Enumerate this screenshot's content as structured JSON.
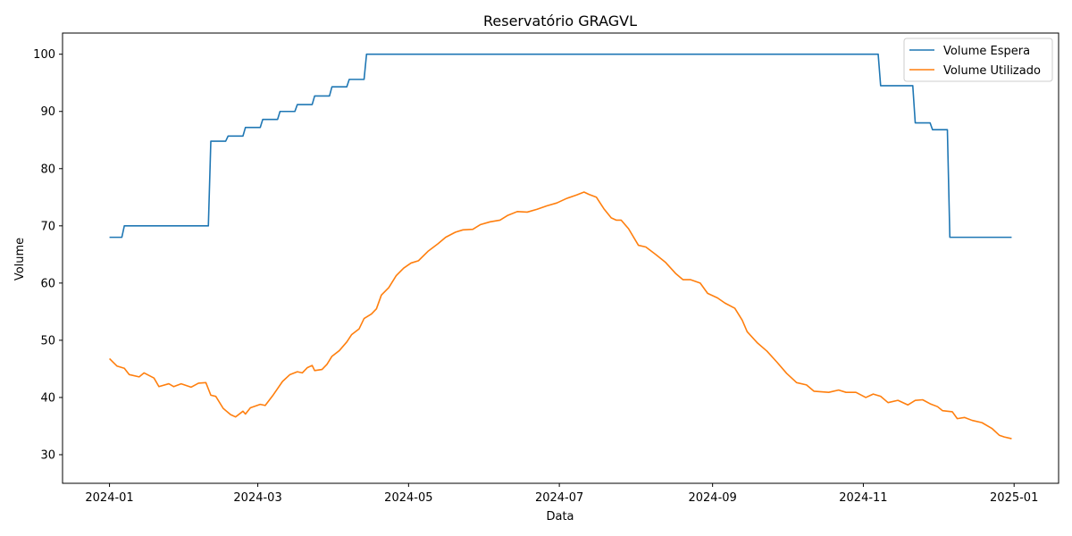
{
  "chart_data": {
    "type": "line",
    "title": "Reservatório GRAGVL",
    "xlabel": "Data",
    "ylabel": "Volume",
    "ylim": [
      25,
      103.7
    ],
    "xlim": [
      "2023-12-13",
      "2025-01-19"
    ],
    "x_ticks": [
      "2024-01",
      "2024-03",
      "2024-05",
      "2024-07",
      "2024-09",
      "2024-11",
      "2025-01"
    ],
    "y_ticks": [
      30,
      40,
      50,
      60,
      70,
      80,
      90,
      100
    ],
    "grid": false,
    "legend": "top-right",
    "series": [
      {
        "name": "Volume Espera",
        "color": "#1f77b4",
        "points": [
          [
            "2024-01-01",
            68.0
          ],
          [
            "2024-01-06",
            68.0
          ],
          [
            "2024-01-07",
            70.0
          ],
          [
            "2024-02-10",
            70.0
          ],
          [
            "2024-02-11",
            84.8
          ],
          [
            "2024-02-17",
            84.8
          ],
          [
            "2024-02-18",
            85.7
          ],
          [
            "2024-02-24",
            85.7
          ],
          [
            "2024-02-25",
            87.2
          ],
          [
            "2024-03-02",
            87.2
          ],
          [
            "2024-03-03",
            88.6
          ],
          [
            "2024-03-09",
            88.6
          ],
          [
            "2024-03-10",
            90.0
          ],
          [
            "2024-03-16",
            90.0
          ],
          [
            "2024-03-17",
            91.2
          ],
          [
            "2024-03-23",
            91.2
          ],
          [
            "2024-03-24",
            92.7
          ],
          [
            "2024-03-30",
            92.7
          ],
          [
            "2024-03-31",
            94.3
          ],
          [
            "2024-04-06",
            94.3
          ],
          [
            "2024-04-07",
            95.6
          ],
          [
            "2024-04-13",
            95.6
          ],
          [
            "2024-04-14",
            100.0
          ],
          [
            "2024-11-07",
            100.0
          ],
          [
            "2024-11-08",
            94.5
          ],
          [
            "2024-11-21",
            94.5
          ],
          [
            "2024-11-22",
            88.0
          ],
          [
            "2024-11-28",
            88.0
          ],
          [
            "2024-11-29",
            86.8
          ],
          [
            "2024-12-05",
            86.8
          ],
          [
            "2024-12-06",
            68.0
          ],
          [
            "2024-12-31",
            68.0
          ]
        ]
      },
      {
        "name": "Volume Utilizado",
        "color": "#ff7f0e",
        "points": [
          [
            "2024-01-01",
            46.8
          ],
          [
            "2024-01-04",
            45.5
          ],
          [
            "2024-01-07",
            45.1
          ],
          [
            "2024-01-09",
            44.0
          ],
          [
            "2024-01-13",
            43.6
          ],
          [
            "2024-01-15",
            44.3
          ],
          [
            "2024-01-19",
            43.4
          ],
          [
            "2024-01-21",
            41.9
          ],
          [
            "2024-01-25",
            42.4
          ],
          [
            "2024-01-27",
            41.9
          ],
          [
            "2024-01-30",
            42.4
          ],
          [
            "2024-02-03",
            41.8
          ],
          [
            "2024-02-06",
            42.5
          ],
          [
            "2024-02-09",
            42.6
          ],
          [
            "2024-02-11",
            40.4
          ],
          [
            "2024-02-13",
            40.2
          ],
          [
            "2024-02-16",
            38.1
          ],
          [
            "2024-02-19",
            37.0
          ],
          [
            "2024-02-21",
            36.6
          ],
          [
            "2024-02-24",
            37.6
          ],
          [
            "2024-02-25",
            37.1
          ],
          [
            "2024-02-27",
            38.2
          ],
          [
            "2024-03-02",
            38.8
          ],
          [
            "2024-03-04",
            38.6
          ],
          [
            "2024-03-07",
            40.3
          ],
          [
            "2024-03-11",
            42.8
          ],
          [
            "2024-03-14",
            44.0
          ],
          [
            "2024-03-17",
            44.5
          ],
          [
            "2024-03-19",
            44.3
          ],
          [
            "2024-03-21",
            45.2
          ],
          [
            "2024-03-23",
            45.6
          ],
          [
            "2024-03-24",
            44.7
          ],
          [
            "2024-03-27",
            44.9
          ],
          [
            "2024-03-29",
            45.8
          ],
          [
            "2024-03-31",
            47.2
          ],
          [
            "2024-04-03",
            48.2
          ],
          [
            "2024-04-06",
            49.7
          ],
          [
            "2024-04-08",
            51.0
          ],
          [
            "2024-04-11",
            52.0
          ],
          [
            "2024-04-13",
            53.8
          ],
          [
            "2024-04-16",
            54.6
          ],
          [
            "2024-04-18",
            55.5
          ],
          [
            "2024-04-20",
            57.9
          ],
          [
            "2024-04-23",
            59.2
          ],
          [
            "2024-04-26",
            61.3
          ],
          [
            "2024-04-29",
            62.6
          ],
          [
            "2024-05-02",
            63.5
          ],
          [
            "2024-05-05",
            63.9
          ],
          [
            "2024-05-09",
            65.6
          ],
          [
            "2024-05-13",
            66.9
          ],
          [
            "2024-05-16",
            68.0
          ],
          [
            "2024-05-20",
            68.9
          ],
          [
            "2024-05-23",
            69.3
          ],
          [
            "2024-05-27",
            69.4
          ],
          [
            "2024-05-30",
            70.2
          ],
          [
            "2024-06-03",
            70.7
          ],
          [
            "2024-06-07",
            71.0
          ],
          [
            "2024-06-10",
            71.8
          ],
          [
            "2024-06-14",
            72.5
          ],
          [
            "2024-06-18",
            72.4
          ],
          [
            "2024-06-22",
            72.9
          ],
          [
            "2024-06-26",
            73.5
          ],
          [
            "2024-06-30",
            74.0
          ],
          [
            "2024-07-04",
            74.8
          ],
          [
            "2024-07-08",
            75.4
          ],
          [
            "2024-07-11",
            75.9
          ],
          [
            "2024-07-13",
            75.5
          ],
          [
            "2024-07-16",
            75.0
          ],
          [
            "2024-07-19",
            73.0
          ],
          [
            "2024-07-22",
            71.4
          ],
          [
            "2024-07-24",
            71.0
          ],
          [
            "2024-07-26",
            71.0
          ],
          [
            "2024-07-29",
            69.5
          ],
          [
            "2024-08-02",
            66.6
          ],
          [
            "2024-08-05",
            66.3
          ],
          [
            "2024-08-09",
            65.0
          ],
          [
            "2024-08-13",
            63.6
          ],
          [
            "2024-08-17",
            61.7
          ],
          [
            "2024-08-20",
            60.6
          ],
          [
            "2024-08-23",
            60.6
          ],
          [
            "2024-08-27",
            60.0
          ],
          [
            "2024-08-30",
            58.2
          ],
          [
            "2024-09-03",
            57.4
          ],
          [
            "2024-09-06",
            56.5
          ],
          [
            "2024-09-10",
            55.6
          ],
          [
            "2024-09-13",
            53.5
          ],
          [
            "2024-09-15",
            51.5
          ],
          [
            "2024-09-19",
            49.6
          ],
          [
            "2024-09-23",
            48.1
          ],
          [
            "2024-09-27",
            46.2
          ],
          [
            "2024-10-01",
            44.2
          ],
          [
            "2024-10-05",
            42.6
          ],
          [
            "2024-10-09",
            42.2
          ],
          [
            "2024-10-12",
            41.1
          ],
          [
            "2024-10-15",
            41.0
          ],
          [
            "2024-10-18",
            40.9
          ],
          [
            "2024-10-22",
            41.3
          ],
          [
            "2024-10-25",
            40.9
          ],
          [
            "2024-10-29",
            40.9
          ],
          [
            "2024-11-02",
            40.0
          ],
          [
            "2024-11-05",
            40.6
          ],
          [
            "2024-11-08",
            40.2
          ],
          [
            "2024-11-11",
            39.1
          ],
          [
            "2024-11-15",
            39.5
          ],
          [
            "2024-11-19",
            38.7
          ],
          [
            "2024-11-22",
            39.5
          ],
          [
            "2024-11-25",
            39.6
          ],
          [
            "2024-11-28",
            38.9
          ],
          [
            "2024-12-01",
            38.4
          ],
          [
            "2024-12-03",
            37.7
          ],
          [
            "2024-12-07",
            37.5
          ],
          [
            "2024-12-09",
            36.3
          ],
          [
            "2024-12-12",
            36.5
          ],
          [
            "2024-12-15",
            36.0
          ],
          [
            "2024-12-19",
            35.6
          ],
          [
            "2024-12-23",
            34.6
          ],
          [
            "2024-12-26",
            33.4
          ],
          [
            "2024-12-28",
            33.1
          ],
          [
            "2024-12-31",
            32.8
          ]
        ]
      }
    ]
  }
}
